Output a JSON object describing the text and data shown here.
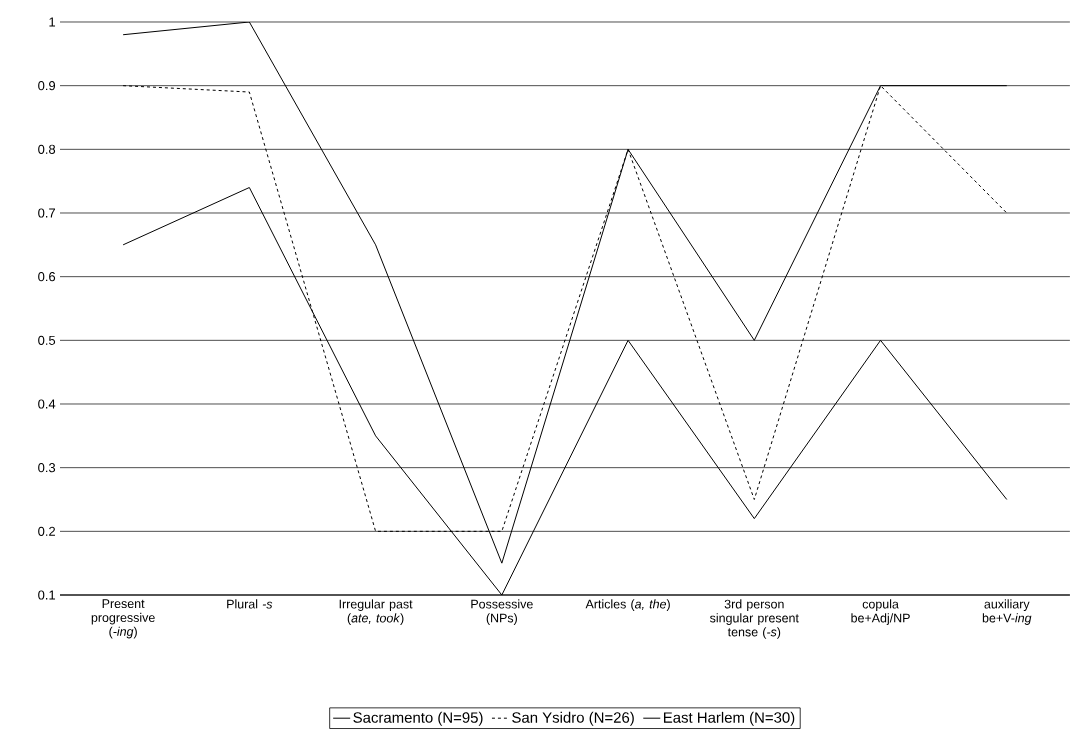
{
  "chart_data": {
    "type": "line",
    "categories": [
      "Present progressive (*-ing*)",
      "Plural *-s*",
      "Irregular past (*ate, took*)",
      "Possessive (NPs)",
      "Articles (*a, the*)",
      "3rd person singular present tense (*-s*)",
      "copula be+Adj/NP",
      "auxiliary be+V-*ing*"
    ],
    "series": [
      {
        "name": "Sacramento (N=95)",
        "color": "#000000",
        "line_style": "solid",
        "values": [
          0.98,
          1.0,
          0.65,
          0.15,
          0.8,
          0.5,
          0.9,
          0.9
        ]
      },
      {
        "name": "San Ysidro (N=26)",
        "color": "#000000",
        "line_style": "dashed",
        "values": [
          0.9,
          0.89,
          0.2,
          0.2,
          0.8,
          0.25,
          0.9,
          0.7
        ]
      },
      {
        "name": "East Harlem (N=30)",
        "color": "#000000",
        "line_style": "solid",
        "values": [
          0.65,
          0.74,
          0.35,
          0.1,
          0.5,
          0.22,
          0.5,
          0.25
        ]
      }
    ],
    "ylim": [
      0.1,
      1
    ],
    "yticks": [
      0.1,
      0.2,
      0.3,
      0.4,
      0.5,
      0.6,
      0.7,
      0.8,
      0.9,
      1
    ],
    "grid": "y",
    "legend": "bottom",
    "marker": "none"
  }
}
